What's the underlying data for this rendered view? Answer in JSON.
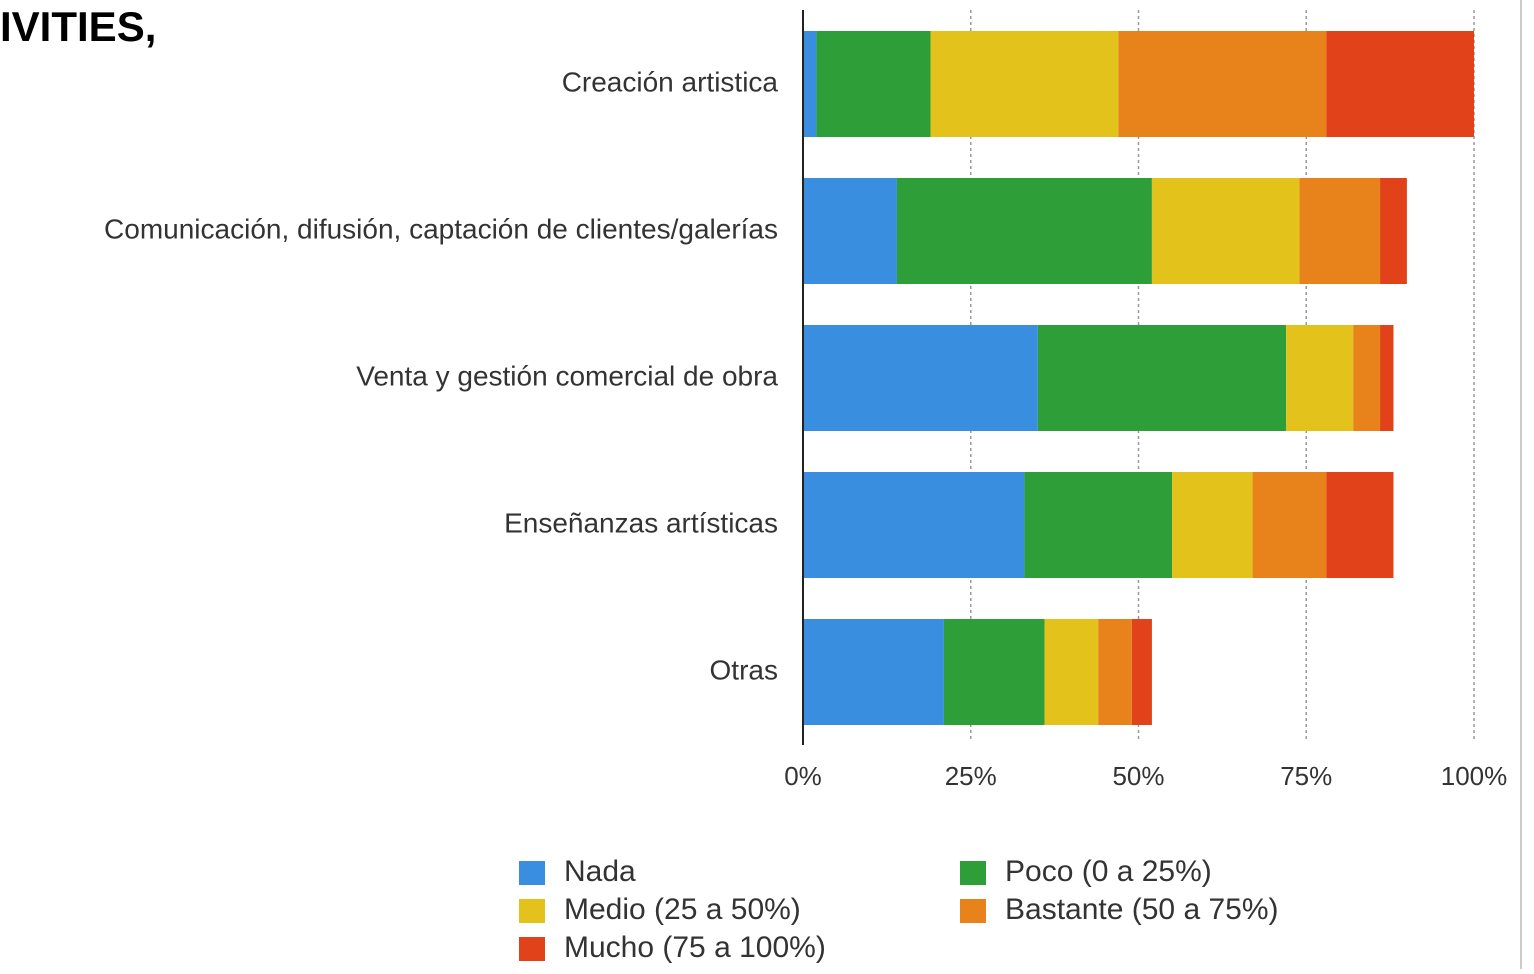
{
  "chart_data": {
    "type": "stacked-barh",
    "title": "IVITIES,",
    "categories": [
      "Creación artistica",
      "Comunicación, difusión, captación de clientes/galerías",
      "Venta y gestión comercial de obra",
      "Enseñanzas artísticas",
      "Otras"
    ],
    "series": [
      {
        "name": "Nada",
        "color": "#3a8ee0",
        "values": [
          2,
          14,
          35,
          33,
          21
        ]
      },
      {
        "name": "Poco (0 a 25%)",
        "color": "#2e9e38",
        "values": [
          17,
          38,
          37,
          22,
          15
        ]
      },
      {
        "name": "Medio (25 a 50%)",
        "color": "#e3c21c",
        "values": [
          28,
          22,
          10,
          12,
          8
        ]
      },
      {
        "name": "Bastante (50 a 75%)",
        "color": "#e8831c",
        "values": [
          31,
          12,
          4,
          11,
          5
        ]
      },
      {
        "name": "Mucho (75 a 100%)",
        "color": "#e2421a",
        "values": [
          22,
          4,
          2,
          10,
          3
        ]
      }
    ],
    "xlim": [
      0,
      100
    ],
    "xticks": [
      {
        "value": 0,
        "label": "0%"
      },
      {
        "value": 25,
        "label": "25%"
      },
      {
        "value": 50,
        "label": "50%"
      },
      {
        "value": 75,
        "label": "75%"
      },
      {
        "value": 100,
        "label": "100%"
      }
    ],
    "grid": true,
    "legend": "bottom"
  }
}
